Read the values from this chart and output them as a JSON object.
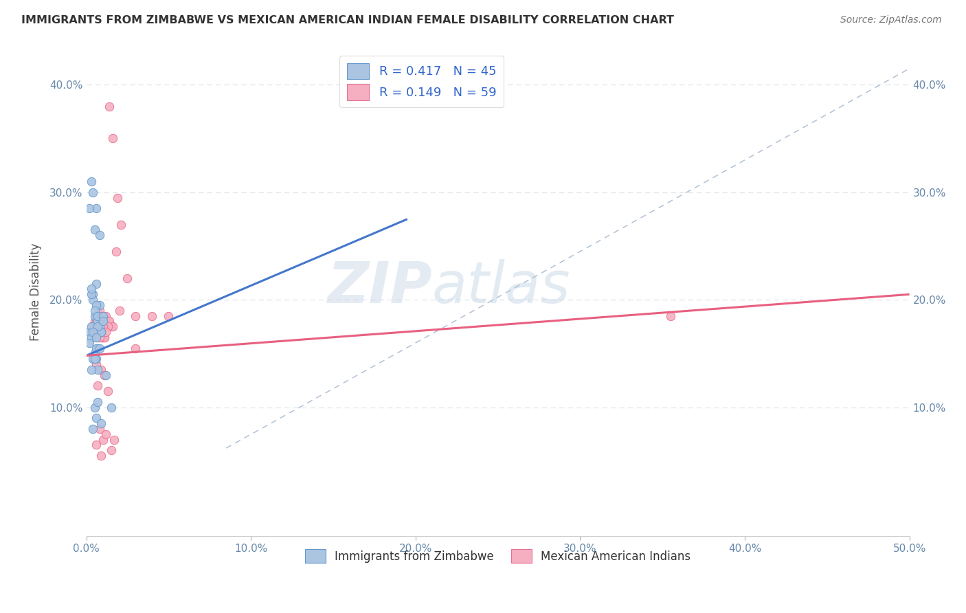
{
  "title": "IMMIGRANTS FROM ZIMBABWE VS MEXICAN AMERICAN INDIAN FEMALE DISABILITY CORRELATION CHART",
  "source": "Source: ZipAtlas.com",
  "xlabel": "",
  "ylabel": "Female Disability",
  "xlim": [
    0.0,
    0.5
  ],
  "ylim": [
    -0.02,
    0.435
  ],
  "xticks": [
    0.0,
    0.1,
    0.2,
    0.3,
    0.4,
    0.5
  ],
  "yticks": [
    0.1,
    0.2,
    0.3,
    0.4
  ],
  "xticklabels": [
    "0.0%",
    "10.0%",
    "20.0%",
    "30.0%",
    "40.0%",
    "50.0%"
  ],
  "yticklabels": [
    "10.0%",
    "20.0%",
    "30.0%",
    "40.0%"
  ],
  "legend_labels": [
    "Immigrants from Zimbabwe",
    "Mexican American Indians"
  ],
  "blue_R": 0.417,
  "blue_N": 45,
  "pink_R": 0.149,
  "pink_N": 59,
  "blue_color": "#aac4e2",
  "pink_color": "#f5afc0",
  "blue_edge_color": "#6699cc",
  "pink_edge_color": "#e87090",
  "blue_line_color": "#4477cc",
  "pink_line_color": "#e86080",
  "ref_line_color": "#aabbd0",
  "watermark_zip": "ZIP",
  "watermark_atlas": "atlas",
  "background_color": "#ffffff",
  "grid_color": "#e0e4e8",
  "blue_scatter_x": [
    0.004,
    0.006,
    0.002,
    0.008,
    0.003,
    0.005,
    0.007,
    0.009,
    0.004,
    0.006,
    0.003,
    0.005,
    0.007,
    0.01,
    0.008,
    0.003,
    0.005,
    0.006,
    0.004,
    0.007,
    0.002,
    0.009,
    0.006,
    0.005,
    0.008,
    0.003,
    0.004,
    0.006,
    0.005,
    0.007,
    0.009,
    0.003,
    0.004,
    0.006,
    0.005,
    0.008,
    0.002,
    0.007,
    0.004,
    0.006,
    0.01,
    0.007,
    0.003,
    0.012,
    0.015
  ],
  "blue_scatter_y": [
    0.205,
    0.215,
    0.17,
    0.195,
    0.175,
    0.185,
    0.18,
    0.17,
    0.2,
    0.195,
    0.205,
    0.19,
    0.185,
    0.185,
    0.175,
    0.165,
    0.15,
    0.145,
    0.145,
    0.155,
    0.16,
    0.17,
    0.155,
    0.145,
    0.155,
    0.21,
    0.08,
    0.09,
    0.1,
    0.105,
    0.085,
    0.31,
    0.3,
    0.285,
    0.265,
    0.26,
    0.285,
    0.175,
    0.17,
    0.165,
    0.18,
    0.135,
    0.135,
    0.13,
    0.1
  ],
  "pink_scatter_x": [
    0.004,
    0.006,
    0.008,
    0.005,
    0.007,
    0.01,
    0.012,
    0.009,
    0.006,
    0.008,
    0.011,
    0.007,
    0.009,
    0.005,
    0.013,
    0.015,
    0.01,
    0.008,
    0.006,
    0.012,
    0.009,
    0.007,
    0.011,
    0.008,
    0.01,
    0.006,
    0.014,
    0.016,
    0.009,
    0.011,
    0.013,
    0.007,
    0.008,
    0.01,
    0.012,
    0.006,
    0.009,
    0.011,
    0.007,
    0.013,
    0.008,
    0.01,
    0.012,
    0.006,
    0.009,
    0.015,
    0.017,
    0.014,
    0.016,
    0.019,
    0.021,
    0.018,
    0.025,
    0.03,
    0.03,
    0.02,
    0.04,
    0.05,
    0.355
  ],
  "pink_scatter_y": [
    0.175,
    0.185,
    0.19,
    0.18,
    0.175,
    0.165,
    0.18,
    0.185,
    0.175,
    0.17,
    0.175,
    0.17,
    0.165,
    0.17,
    0.18,
    0.175,
    0.165,
    0.175,
    0.18,
    0.185,
    0.175,
    0.17,
    0.165,
    0.17,
    0.175,
    0.165,
    0.18,
    0.175,
    0.17,
    0.165,
    0.175,
    0.17,
    0.165,
    0.175,
    0.17,
    0.14,
    0.135,
    0.13,
    0.12,
    0.115,
    0.08,
    0.07,
    0.075,
    0.065,
    0.055,
    0.06,
    0.07,
    0.38,
    0.35,
    0.295,
    0.27,
    0.245,
    0.22,
    0.155,
    0.185,
    0.19,
    0.185,
    0.185,
    0.185
  ],
  "blue_line_x": [
    0.0,
    0.195
  ],
  "blue_line_y": [
    0.148,
    0.275
  ],
  "pink_line_x": [
    0.0,
    0.5
  ],
  "pink_line_y": [
    0.148,
    0.205
  ],
  "ref_line_x": [
    0.085,
    0.5
  ],
  "ref_line_y": [
    0.062,
    0.415
  ]
}
